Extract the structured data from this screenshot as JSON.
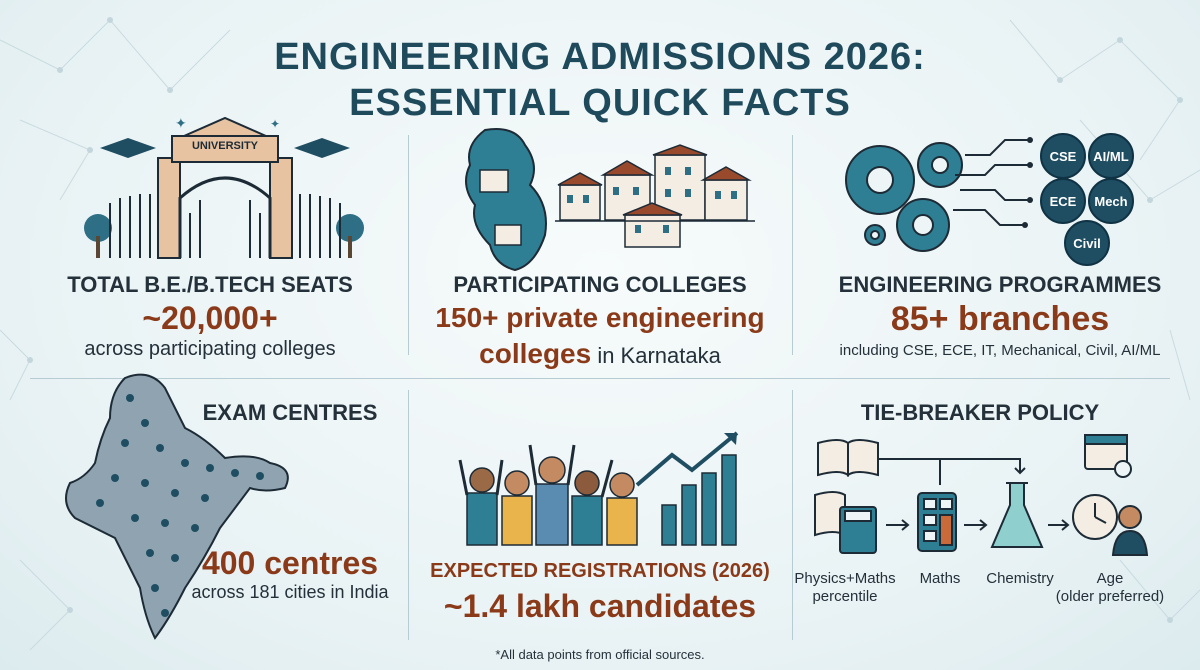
{
  "title": {
    "line1": "ENGINEERING ADMISSIONS 2026:",
    "line2": "ESSENTIAL QUICK FACTS"
  },
  "panels": {
    "seats": {
      "sign": "UNIVERSITY",
      "label": "TOTAL B.E./B.TECH SEATS",
      "value": "~20,000+",
      "sub": "across participating colleges"
    },
    "colleges": {
      "label": "PARTICIPATING COLLEGES",
      "value_bold": "150+ private engineering",
      "value_bold2": "colleges",
      "value_tail": " in Karnataka"
    },
    "programmes": {
      "label": "ENGINEERING PROGRAMMES",
      "value": "85+ branches",
      "sub": "including CSE, ECE, IT, Mechanical, Civil, AI/ML",
      "chips": [
        "CSE",
        "AI/ML",
        "ECE",
        "Mech",
        "Civil"
      ]
    },
    "exam": {
      "label": "EXAM CENTRES",
      "value": "400 centres",
      "sub": "across 181 cities in India"
    },
    "registrations": {
      "label": "EXPECTED REGISTRATIONS (2026)",
      "value": "~1.4 lakh candidates"
    },
    "tiebreaker": {
      "label": "TIE-BREAKER POLICY",
      "steps": [
        {
          "line1": "Physics+Maths",
          "line2": "percentile"
        },
        {
          "line1": "Maths",
          "line2": ""
        },
        {
          "line1": "Chemistry",
          "line2": ""
        },
        {
          "line1": "Age",
          "line2": "(older preferred)"
        }
      ]
    }
  },
  "footnote": "*All data points from official sources.",
  "colors": {
    "title": "#1e4a5c",
    "accent": "#8a3a19",
    "teal": "#2f6f86",
    "navy": "#1f4e63"
  }
}
